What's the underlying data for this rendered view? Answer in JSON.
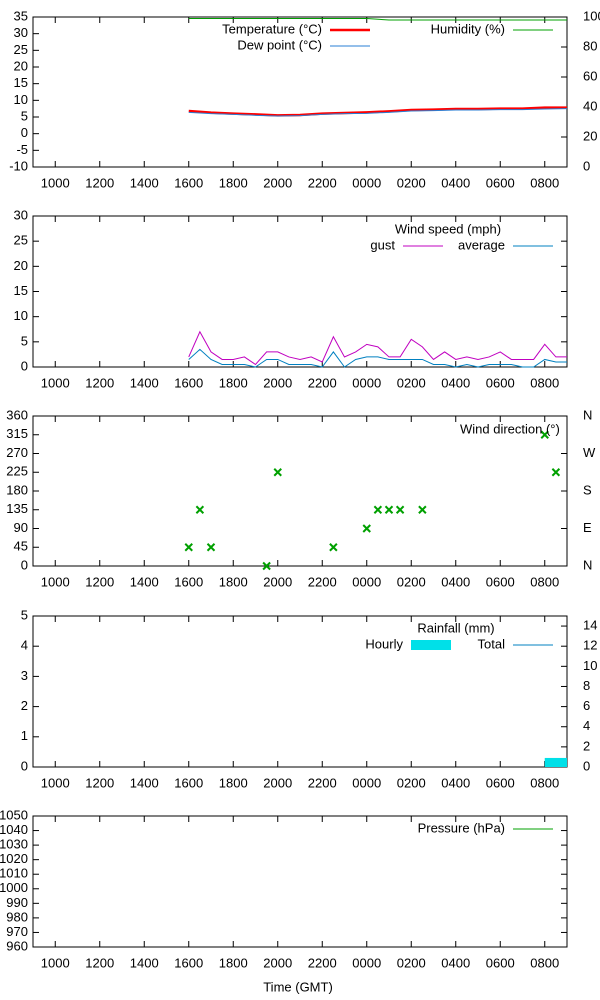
{
  "chart_data": [
    {
      "type": "line",
      "xlim": [
        9,
        33
      ],
      "xticks": [
        {
          "value": 10,
          "label": "1000"
        },
        {
          "value": 12,
          "label": "1200"
        },
        {
          "value": 14,
          "label": "1400"
        },
        {
          "value": 16,
          "label": "1600"
        },
        {
          "value": 18,
          "label": "1800"
        },
        {
          "value": 20,
          "label": "2000"
        },
        {
          "value": 22,
          "label": "2200"
        },
        {
          "value": 24,
          "label": "0000"
        },
        {
          "value": 26,
          "label": "0200"
        },
        {
          "value": 28,
          "label": "0400"
        },
        {
          "value": 30,
          "label": "0600"
        },
        {
          "value": 32,
          "label": "0800"
        }
      ],
      "ylim": [
        -10,
        35
      ],
      "yticks": [
        -10,
        -5,
        0,
        5,
        10,
        15,
        20,
        25,
        30,
        35
      ],
      "y2lim": [
        0,
        100
      ],
      "y2ticks": [
        0,
        20,
        40,
        60,
        80,
        100
      ],
      "series": [
        {
          "name": "Temperature (°C)",
          "color": "#ff0000",
          "x": [
            16,
            17,
            18,
            19,
            20,
            21,
            22,
            23,
            24,
            25,
            26,
            27,
            28,
            29,
            30,
            31,
            32,
            33
          ],
          "values": [
            6.8,
            6.3,
            6.0,
            5.8,
            5.5,
            5.6,
            6.0,
            6.2,
            6.4,
            6.7,
            7.1,
            7.2,
            7.4,
            7.4,
            7.5,
            7.5,
            7.8,
            7.8
          ]
        },
        {
          "name": "Dew point (°C)",
          "color": "#2a7fd4",
          "x": [
            16,
            17,
            18,
            19,
            20,
            21,
            22,
            23,
            24,
            25,
            26,
            27,
            28,
            29,
            30,
            31,
            32,
            33
          ],
          "values": [
            6.4,
            6.0,
            5.8,
            5.5,
            5.3,
            5.4,
            5.8,
            6.0,
            6.1,
            6.4,
            6.8,
            6.9,
            7.1,
            7.1,
            7.2,
            7.2,
            7.4,
            7.5
          ]
        },
        {
          "name": "Humidity (%)",
          "color": "#00a000",
          "axis": "y2",
          "x": [
            16,
            17,
            18,
            19,
            20,
            21,
            22,
            23,
            24,
            25,
            26,
            27,
            28,
            29,
            30,
            31,
            32,
            33
          ],
          "values": [
            99,
            99,
            99,
            99,
            99,
            99,
            99,
            99,
            99,
            98,
            98,
            98,
            98,
            98,
            98,
            98,
            98,
            98
          ]
        }
      ]
    },
    {
      "type": "line",
      "title": "Wind speed (mph)",
      "xlim": [
        9,
        33
      ],
      "xticks": [
        {
          "value": 10,
          "label": "1000"
        },
        {
          "value": 12,
          "label": "1200"
        },
        {
          "value": 14,
          "label": "1400"
        },
        {
          "value": 16,
          "label": "1600"
        },
        {
          "value": 18,
          "label": "1800"
        },
        {
          "value": 20,
          "label": "2000"
        },
        {
          "value": 22,
          "label": "2200"
        },
        {
          "value": 24,
          "label": "0000"
        },
        {
          "value": 26,
          "label": "0200"
        },
        {
          "value": 28,
          "label": "0400"
        },
        {
          "value": 30,
          "label": "0600"
        },
        {
          "value": 32,
          "label": "0800"
        }
      ],
      "ylim": [
        0,
        30
      ],
      "yticks": [
        0,
        5,
        10,
        15,
        20,
        25,
        30
      ],
      "series": [
        {
          "name": "gust",
          "color": "#c000c0",
          "x": [
            16,
            16.5,
            17,
            17.5,
            18,
            18.5,
            19,
            19.5,
            20,
            20.5,
            21,
            21.5,
            22,
            22.5,
            23,
            23.5,
            24,
            24.5,
            25,
            25.5,
            26,
            26.5,
            27,
            27.5,
            28,
            28.5,
            29,
            29.5,
            30,
            30.5,
            31,
            31.5,
            32,
            32.5,
            33
          ],
          "values": [
            2,
            7,
            3,
            1.5,
            1.5,
            2,
            0.5,
            3,
            3,
            2,
            1.5,
            2,
            1,
            6,
            2,
            3,
            4.5,
            4,
            2,
            2,
            5.5,
            4,
            1.5,
            3,
            1.5,
            2,
            1.5,
            2,
            3,
            1.5,
            1.5,
            1.5,
            4.5,
            2,
            2
          ]
        },
        {
          "name": "average",
          "color": "#0080c0",
          "x": [
            16,
            16.5,
            17,
            17.5,
            18,
            18.5,
            19,
            19.5,
            20,
            20.5,
            21,
            21.5,
            22,
            22.5,
            23,
            23.5,
            24,
            24.5,
            25,
            25.5,
            26,
            26.5,
            27,
            27.5,
            28,
            28.5,
            29,
            29.5,
            30,
            30.5,
            31,
            31.5,
            32,
            32.5,
            33
          ],
          "values": [
            1.5,
            3.5,
            1.5,
            0.5,
            0.5,
            0.5,
            0,
            1.5,
            1.5,
            0.5,
            0.5,
            0.5,
            0,
            3,
            0,
            1.5,
            2,
            2,
            1.5,
            1.5,
            1.5,
            1.5,
            0.5,
            0.5,
            0,
            0.5,
            0,
            0.5,
            0.5,
            0.5,
            0,
            0,
            1.5,
            1,
            1
          ]
        }
      ]
    },
    {
      "type": "scatter",
      "xlim": [
        9,
        33
      ],
      "xticks": [
        {
          "value": 10,
          "label": "1000"
        },
        {
          "value": 12,
          "label": "1200"
        },
        {
          "value": 14,
          "label": "1400"
        },
        {
          "value": 16,
          "label": "1600"
        },
        {
          "value": 18,
          "label": "1800"
        },
        {
          "value": 20,
          "label": "2000"
        },
        {
          "value": 22,
          "label": "2200"
        },
        {
          "value": 24,
          "label": "0000"
        },
        {
          "value": 26,
          "label": "0200"
        },
        {
          "value": 28,
          "label": "0400"
        },
        {
          "value": 30,
          "label": "0600"
        },
        {
          "value": 32,
          "label": "0800"
        }
      ],
      "ylim": [
        0,
        360
      ],
      "yticks": [
        0,
        45,
        90,
        135,
        180,
        225,
        270,
        315,
        360
      ],
      "y2lim": [
        0,
        360
      ],
      "y2ticks": [
        {
          "value": 0,
          "label": "N"
        },
        {
          "value": 90,
          "label": "E"
        },
        {
          "value": 180,
          "label": "S"
        },
        {
          "value": 270,
          "label": "W"
        },
        {
          "value": 360,
          "label": "N"
        }
      ],
      "series": [
        {
          "name": "Wind direction (°)",
          "color": "#00a000",
          "x": [
            16,
            16.5,
            17,
            19.5,
            20,
            22.5,
            24,
            24.5,
            25,
            25.5,
            26.5,
            32,
            32.5
          ],
          "values": [
            45,
            135,
            45,
            0,
            225,
            45,
            90,
            135,
            135,
            135,
            135,
            315,
            225
          ]
        }
      ]
    },
    {
      "type": "bar",
      "title": "Rainfall (mm)",
      "xlim": [
        9,
        33
      ],
      "xticks": [
        {
          "value": 10,
          "label": "1000"
        },
        {
          "value": 12,
          "label": "1200"
        },
        {
          "value": 14,
          "label": "1400"
        },
        {
          "value": 16,
          "label": "1600"
        },
        {
          "value": 18,
          "label": "1800"
        },
        {
          "value": 20,
          "label": "2000"
        },
        {
          "value": 22,
          "label": "2200"
        },
        {
          "value": 24,
          "label": "0000"
        },
        {
          "value": 26,
          "label": "0200"
        },
        {
          "value": 28,
          "label": "0400"
        },
        {
          "value": 30,
          "label": "0600"
        },
        {
          "value": 32,
          "label": "0800"
        }
      ],
      "ylim": [
        0,
        5
      ],
      "yticks": [
        0,
        1,
        2,
        3,
        4,
        5
      ],
      "y2lim": [
        0,
        15
      ],
      "y2ticks": [
        0,
        2,
        4,
        6,
        8,
        10,
        12,
        14
      ],
      "series": [
        {
          "name": "Hourly",
          "color": "#00e0e8",
          "style": "bar",
          "bins": [
            32,
            33
          ],
          "values": [
            0.3
          ]
        },
        {
          "name": "Total",
          "color": "#0080c0",
          "style": "line",
          "axis": "y2",
          "x": [],
          "values": []
        }
      ]
    },
    {
      "type": "line",
      "xlabel": "Time (GMT)",
      "xlim": [
        9,
        33
      ],
      "xticks": [
        {
          "value": 10,
          "label": "1000"
        },
        {
          "value": 12,
          "label": "1200"
        },
        {
          "value": 14,
          "label": "1400"
        },
        {
          "value": 16,
          "label": "1600"
        },
        {
          "value": 18,
          "label": "1800"
        },
        {
          "value": 20,
          "label": "2000"
        },
        {
          "value": 22,
          "label": "2200"
        },
        {
          "value": 24,
          "label": "0000"
        },
        {
          "value": 26,
          "label": "0200"
        },
        {
          "value": 28,
          "label": "0400"
        },
        {
          "value": 30,
          "label": "0600"
        },
        {
          "value": 32,
          "label": "0800"
        }
      ],
      "ylim": [
        960,
        1050
      ],
      "yticks": [
        960,
        970,
        980,
        990,
        1000,
        1010,
        1020,
        1030,
        1040,
        1050
      ],
      "series": [
        {
          "name": "Pressure (hPa)",
          "color": "#00a000",
          "x": [],
          "values": []
        }
      ]
    }
  ]
}
